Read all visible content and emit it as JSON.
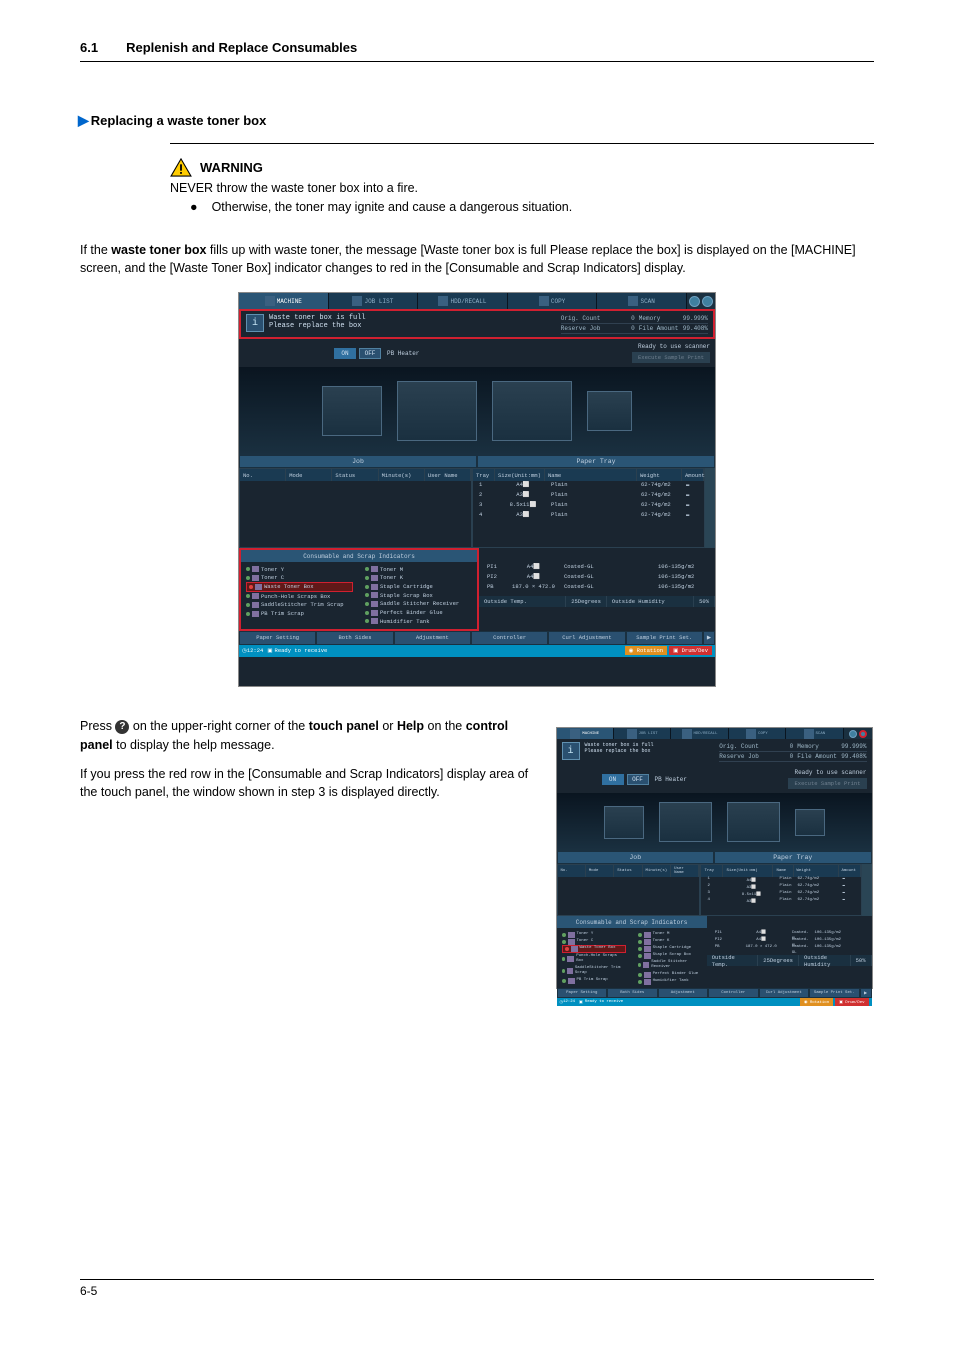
{
  "section": {
    "number": "6.1",
    "title": "Replenish and Replace Consumables"
  },
  "subsection": {
    "title": "Replacing a waste toner box"
  },
  "warning": {
    "label": "WARNING",
    "line1": "NEVER throw the waste toner box into a fire.",
    "line2": "Otherwise, the toner may ignite and cause a dangerous situation."
  },
  "intro": {
    "t1": "If the ",
    "t2": "waste toner box",
    "t3": " fills up with waste toner, the message [Waste toner box is full Please replace the box] is displayed on the [MACHINE] screen, and the [Waste Toner Box] indicator changes to red in the [Consumable and Scrap Indicators] display."
  },
  "step": {
    "p1_a": "Press ",
    "p1_b": " on the upper-right corner of the ",
    "p1_c": "touch panel",
    "p1_d": " or ",
    "p1_e": "Help",
    "p1_f": " on the ",
    "p1_g": "control panel",
    "p1_h": " to display the help message.",
    "p2": "If you press the red row in the [Consumable and Scrap Indicators] display area of the touch panel, the window shown in step 3 is displayed directly."
  },
  "footer": {
    "page": "6-5"
  },
  "machine": {
    "tabs": [
      "MACHINE",
      "JOB LIST",
      "HDD/RECALL",
      "COPY",
      "SCAN"
    ],
    "msg_l1": "Waste toner box is full",
    "msg_l2": "Please replace the box",
    "top_right": {
      "orig_count_label": "Orig. Count",
      "orig_count_val": "0",
      "memory_label": "Memory",
      "memory_val": "99.999%",
      "reserve_label": "Reserve Job",
      "reserve_val": "0",
      "file_label": "File Amount",
      "file_val": "99.408%"
    },
    "heater": {
      "on": "ON",
      "off": "OFF",
      "label": "PB Heater"
    },
    "scanner": "Ready to use scanner",
    "sample_print": "Execute Sample Print",
    "job_header": "Job",
    "tray_header": "Paper Tray",
    "job_cols": [
      "No.",
      "Mode",
      "Status",
      "Minute(s)",
      "User Name"
    ],
    "tray_cols": [
      "Tray",
      "Size(Unit:mm)",
      "Name",
      "Weight",
      "Amount"
    ],
    "trays": [
      {
        "n": "1",
        "size": "A4⬜",
        "name": "Plain",
        "weight": "62-74g/m2"
      },
      {
        "n": "2",
        "size": "A3⬜",
        "name": "Plain",
        "weight": "62-74g/m2"
      },
      {
        "n": "3",
        "size": "8.5x11⬜",
        "name": "Plain",
        "weight": "62-74g/m2"
      },
      {
        "n": "4",
        "size": "A3⬜",
        "name": "Plain",
        "weight": "62-74g/m2"
      }
    ],
    "pi_trays": [
      {
        "n": "PI1",
        "size": "A4⬜",
        "name": "Coated-GL",
        "weight": "106-135g/m2"
      },
      {
        "n": "PI2",
        "size": "A4⬜",
        "name": "Coated-GL",
        "weight": "106-135g/m2"
      },
      {
        "n": "PB",
        "size": "187.0 × 472.0",
        "name": "Coated-GL",
        "weight": "106-135g/m2"
      }
    ],
    "consumable_header": "Consumable and Scrap Indicators",
    "cons_left": [
      {
        "label": "Toner Y",
        "dot": "green"
      },
      {
        "label": "Toner C",
        "dot": "green"
      },
      {
        "label": "Waste Toner Box",
        "dot": "red",
        "red": true
      },
      {
        "label": "Punch-Hole Scraps Box",
        "dot": "green"
      },
      {
        "label": "SaddleStitcher Trim Scrap",
        "dot": "green"
      },
      {
        "label": "PB Trim Scrap",
        "dot": "green"
      }
    ],
    "cons_right": [
      {
        "label": "Toner M",
        "dot": "green"
      },
      {
        "label": "Toner K",
        "dot": "green"
      },
      {
        "label": "Staple Cartridge",
        "dot": "green"
      },
      {
        "label": "Staple Scrap Box",
        "dot": "green"
      },
      {
        "label": "Saddle Stitcher Receiver",
        "dot": "green"
      },
      {
        "label": "Perfect Binder Glue",
        "dot": "green"
      },
      {
        "label": "Humidifier Tank",
        "dot": "green"
      }
    ],
    "temp": {
      "out_temp_l": "Outside Temp.",
      "out_temp_v": "25Degrees",
      "out_hum_l": "Outside Humidity",
      "out_hum_v": "50%"
    },
    "bottom_btns": [
      "Paper Setting",
      "Both Sides",
      "Adjustment",
      "Controller",
      "Curl Adjustment",
      "Sample Print Set."
    ],
    "status": {
      "time": "12:24",
      "text": "Ready to receive",
      "rotation": "Rotation",
      "drum": "Drum/Dev"
    }
  }
}
